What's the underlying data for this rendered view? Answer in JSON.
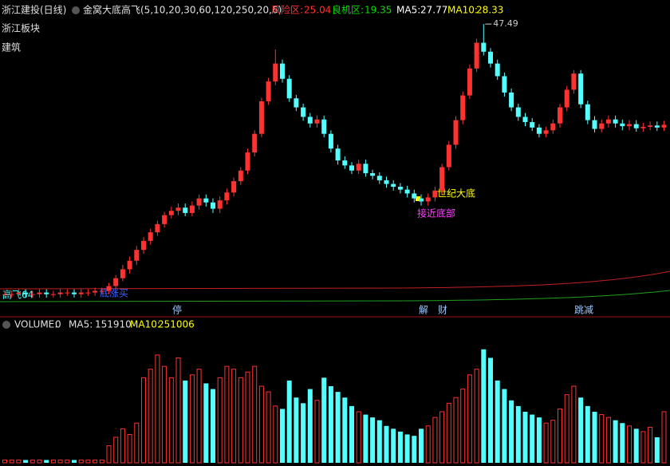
{
  "chart_data": [
    {
      "type": "candlestick",
      "title": "浙江建投(日线)",
      "subtitle": "金窝大底高飞(5,10,20,30,60,120,250,20,6)",
      "indicators": [
        {
          "name": "风险区:",
          "value": 25.04,
          "color": "#ff3232"
        },
        {
          "name": "良机区:",
          "value": 19.35,
          "color": "#00e000"
        },
        {
          "name": "MA5:",
          "value": 27.77,
          "color": "#ffffff"
        },
        {
          "name": "MA10:",
          "value": 28.33,
          "color": "#ffff00"
        }
      ],
      "sector": "浙江板块",
      "industry": "建筑",
      "annotations": [
        "世纪大底",
        "接近底部",
        "高飞64",
        "底涨买"
      ],
      "events": [
        "停",
        "解",
        "财",
        "跳减"
      ],
      "up_color": "#ff3232",
      "down_color": "#54ffff",
      "log_scale": true,
      "ylim": [
        10.5,
        50
      ],
      "open": [
        11.3,
        11.3,
        11.3,
        11.4,
        11.3,
        11.3,
        11.4,
        11.3,
        11.3,
        11.4,
        11.4,
        11.3,
        11.4,
        11.4,
        11.5,
        11.5,
        11.8,
        12.3,
        12.9,
        13.5,
        14.3,
        15.0,
        15.7,
        16.4,
        17.2,
        17.6,
        17.9,
        17.4,
        18.1,
        18.8,
        18.4,
        17.8,
        18.6,
        19.4,
        20.6,
        21.8,
        24.0,
        26.5,
        31.5,
        35.0,
        38.5,
        35.5,
        32.0,
        30.5,
        29.0,
        28.0,
        28.6,
        26.5,
        24.5,
        23.0,
        22.4,
        21.8,
        22.6,
        21.5,
        21.2,
        20.7,
        20.3,
        20.0,
        19.7,
        19.3,
        18.8,
        18.5,
        18.9,
        19.6,
        22.2,
        25.0,
        28.5,
        32.5,
        37.5,
        43.0,
        41.0,
        38.5,
        36.0,
        33.0,
        30.5,
        29.0,
        28.2,
        27.4,
        26.5,
        27.0,
        28.0,
        30.5,
        33.5,
        36.5,
        31.0,
        28.5,
        27.2,
        28.0,
        28.6,
        28.0,
        27.6,
        27.9,
        27.3,
        27.5,
        27.7,
        27.4
      ],
      "high": [
        11.5,
        11.5,
        11.6,
        11.6,
        11.5,
        11.6,
        11.6,
        11.5,
        11.6,
        11.6,
        11.6,
        11.6,
        11.6,
        11.7,
        11.7,
        12.0,
        12.5,
        13.2,
        13.8,
        14.6,
        15.3,
        16.0,
        16.7,
        17.5,
        18.0,
        18.3,
        18.3,
        18.5,
        19.2,
        19.2,
        18.8,
        19.0,
        19.8,
        21.0,
        22.2,
        24.5,
        27.0,
        32.1,
        35.7,
        41.5,
        39.3,
        36.2,
        32.6,
        31.1,
        29.6,
        29.2,
        29.2,
        27.0,
        25.0,
        23.5,
        22.8,
        23.1,
        23.1,
        21.9,
        21.6,
        21.1,
        20.7,
        20.4,
        20.1,
        19.7,
        19.2,
        19.3,
        20.0,
        22.6,
        25.5,
        29.1,
        33.2,
        38.3,
        43.9,
        47.49,
        41.8,
        39.3,
        36.7,
        33.7,
        31.1,
        29.6,
        28.8,
        27.9,
        27.5,
        28.6,
        31.1,
        34.2,
        37.2,
        37.2,
        31.6,
        29.1,
        28.6,
        29.2,
        29.2,
        28.6,
        28.5,
        28.5,
        28.1,
        28.3,
        28.3,
        28.4
      ],
      "low": [
        11.1,
        11.1,
        11.1,
        11.1,
        11.1,
        11.1,
        11.1,
        11.1,
        11.1,
        11.2,
        11.1,
        11.1,
        11.2,
        11.2,
        11.3,
        11.3,
        11.6,
        12.1,
        12.6,
        13.2,
        14.0,
        14.7,
        15.4,
        16.1,
        16.9,
        17.2,
        17.1,
        17.1,
        17.7,
        18.0,
        17.4,
        17.4,
        18.2,
        19.0,
        20.2,
        21.4,
        23.5,
        26.0,
        30.9,
        34.3,
        34.8,
        31.4,
        29.9,
        28.4,
        27.4,
        27.4,
        26.0,
        24.0,
        22.5,
        22.0,
        21.4,
        21.4,
        21.1,
        20.8,
        20.3,
        19.9,
        19.6,
        19.3,
        18.9,
        18.4,
        18.1,
        18.1,
        18.5,
        19.2,
        21.8,
        24.5,
        27.9,
        31.9,
        36.8,
        40.2,
        37.7,
        35.3,
        32.3,
        29.9,
        28.4,
        27.6,
        26.9,
        26.0,
        26.0,
        26.5,
        27.4,
        29.9,
        32.8,
        30.4,
        27.9,
        26.7,
        26.7,
        27.4,
        27.4,
        27.0,
        27.0,
        26.8,
        26.8,
        27.0,
        26.9,
        26.9
      ],
      "close": [
        11.3,
        11.3,
        11.4,
        11.3,
        11.3,
        11.4,
        11.3,
        11.3,
        11.4,
        11.4,
        11.3,
        11.4,
        11.4,
        11.5,
        11.5,
        11.8,
        12.3,
        12.9,
        13.5,
        14.3,
        15.0,
        15.7,
        16.4,
        17.2,
        17.6,
        17.9,
        17.4,
        18.1,
        18.8,
        18.4,
        17.8,
        18.6,
        19.4,
        20.6,
        21.8,
        24.0,
        26.5,
        31.5,
        35.0,
        38.5,
        35.5,
        32.0,
        30.5,
        29.0,
        28.0,
        28.6,
        26.5,
        24.5,
        23.0,
        22.4,
        21.8,
        22.6,
        21.5,
        21.2,
        20.7,
        20.3,
        20.0,
        19.7,
        19.3,
        18.8,
        18.5,
        18.9,
        19.6,
        22.2,
        25.0,
        28.5,
        32.5,
        37.5,
        43.0,
        41.0,
        38.5,
        36.0,
        33.0,
        30.5,
        29.0,
        28.2,
        27.4,
        26.5,
        27.0,
        28.0,
        30.5,
        33.5,
        36.5,
        31.0,
        28.5,
        27.2,
        28.0,
        28.6,
        28.0,
        27.6,
        27.9,
        27.3,
        27.5,
        27.7,
        27.4,
        27.8
      ]
    },
    {
      "type": "bar",
      "indicators": [
        {
          "name": "VOLUME:",
          "value": 0,
          "color": "#e0e0e0"
        },
        {
          "name": "MA5:",
          "value": 151910,
          "color": "#e0e0e0"
        },
        {
          "name": "MA10:",
          "value": 251006,
          "color": "#ffff00"
        }
      ],
      "ylim": [
        0,
        450000
      ],
      "values": [
        10000,
        10000,
        10000,
        10000,
        10000,
        10000,
        10000,
        10000,
        10000,
        10000,
        10000,
        10000,
        10000,
        10000,
        10000,
        60000,
        90000,
        120000,
        100000,
        140000,
        300000,
        330000,
        380000,
        340000,
        300000,
        370000,
        290000,
        310000,
        330000,
        280000,
        260000,
        300000,
        340000,
        330000,
        300000,
        320000,
        340000,
        270000,
        250000,
        200000,
        190000,
        290000,
        230000,
        210000,
        260000,
        220000,
        300000,
        270000,
        250000,
        230000,
        200000,
        180000,
        170000,
        160000,
        150000,
        130000,
        120000,
        110000,
        100000,
        95000,
        120000,
        130000,
        160000,
        180000,
        210000,
        230000,
        260000,
        310000,
        330000,
        400000,
        370000,
        290000,
        260000,
        220000,
        200000,
        180000,
        170000,
        160000,
        140000,
        150000,
        190000,
        240000,
        270000,
        230000,
        200000,
        180000,
        170000,
        160000,
        150000,
        140000,
        130000,
        120000,
        110000,
        125000,
        90000,
        180000
      ]
    }
  ]
}
